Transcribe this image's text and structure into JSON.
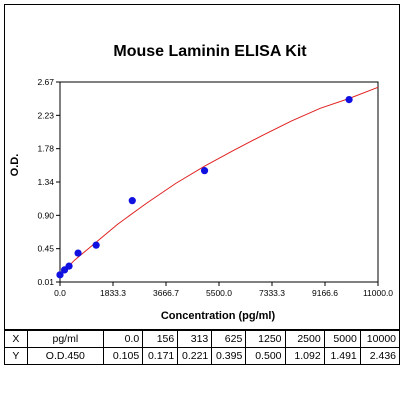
{
  "chart_data": {
    "type": "scatter",
    "title": "Mouse Laminin ELISA Kit",
    "xlabel": "Concentration (pg/ml)",
    "ylabel": "O.D.",
    "xlim": [
      0,
      11000
    ],
    "ylim": [
      0.01,
      2.67
    ],
    "x_ticks": [
      "0.0",
      "1833.3",
      "3666.7",
      "5500.0",
      "7333.3",
      "9166.6",
      "11000.0"
    ],
    "y_ticks": [
      "0.01",
      "0.45",
      "0.90",
      "1.34",
      "1.78",
      "2.23",
      "2.67"
    ],
    "points": {
      "x": [
        0,
        156,
        313,
        625,
        1250,
        2500,
        5000,
        10000
      ],
      "y": [
        0.105,
        0.171,
        0.221,
        0.395,
        0.5,
        1.092,
        1.491,
        2.436
      ]
    },
    "curve": {
      "x": [
        0,
        200,
        500,
        1000,
        2000,
        3000,
        4000,
        5000,
        6000,
        7000,
        8000,
        9000,
        10000,
        11000
      ],
      "y": [
        0.12,
        0.18,
        0.3,
        0.46,
        0.78,
        1.06,
        1.32,
        1.55,
        1.76,
        1.96,
        2.15,
        2.32,
        2.45,
        2.6
      ]
    },
    "colors": {
      "points": "#1010e0",
      "curve": "#e02020",
      "axes": "#000000"
    },
    "grid": false
  },
  "table": {
    "rows": [
      [
        "X",
        "pg/ml",
        "0.0",
        "156",
        "313",
        "625",
        "1250",
        "2500",
        "5000",
        "10000"
      ],
      [
        "Y",
        "O.D.450",
        "0.105",
        "0.171",
        "0.221",
        "0.395",
        "0.500",
        "1.092",
        "1.491",
        "2.436"
      ]
    ]
  }
}
